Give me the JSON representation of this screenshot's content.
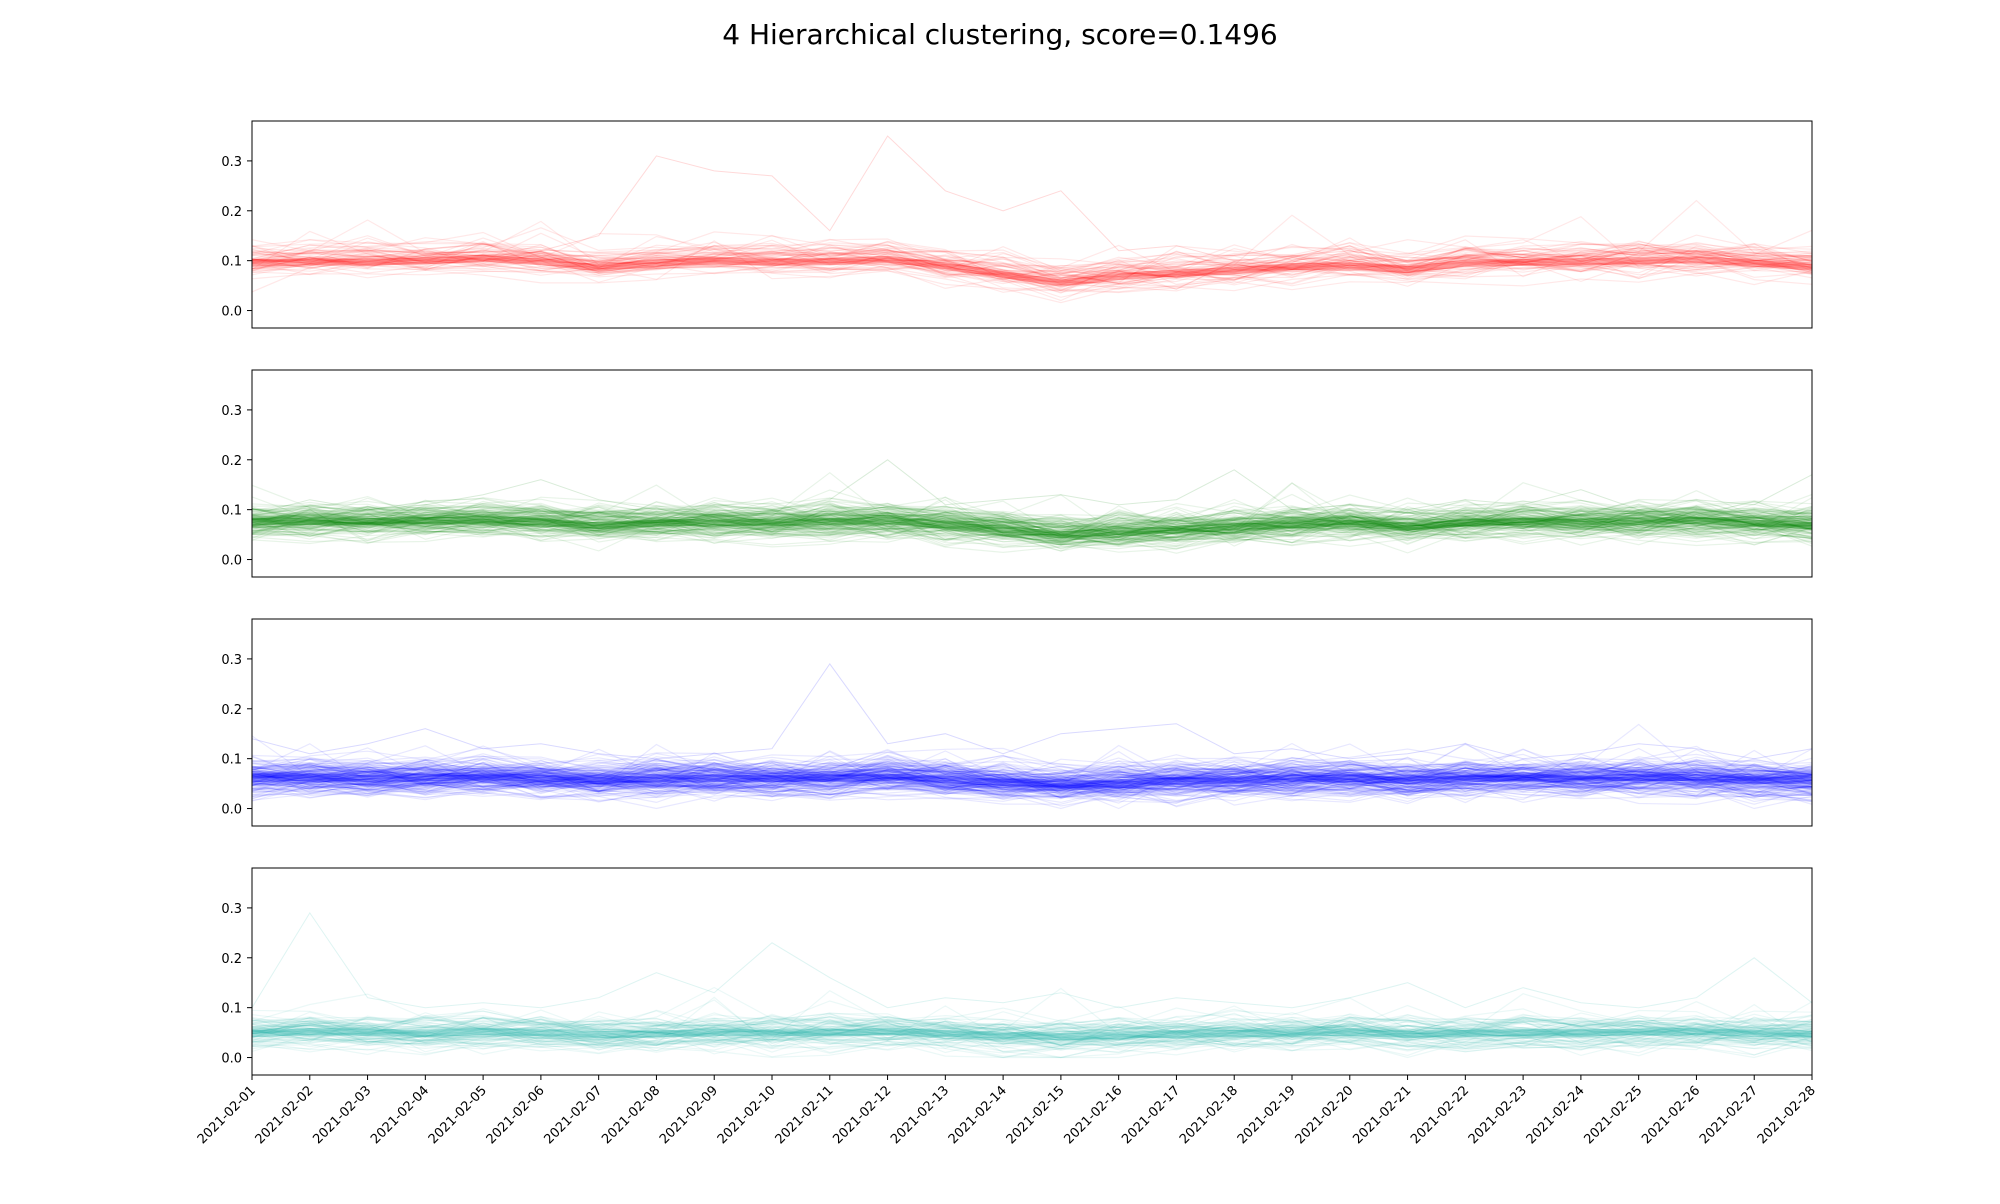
{
  "suptitle": "4 Hierarchical clustering, score=0.1496",
  "chart_data": [
    {
      "type": "line",
      "cluster_index": 0,
      "color": "#ff0000",
      "x": [
        "2021-02-01",
        "2021-02-02",
        "2021-02-03",
        "2021-02-04",
        "2021-02-05",
        "2021-02-06",
        "2021-02-07",
        "2021-02-08",
        "2021-02-09",
        "2021-02-10",
        "2021-02-11",
        "2021-02-12",
        "2021-02-13",
        "2021-02-14",
        "2021-02-15",
        "2021-02-16",
        "2021-02-17",
        "2021-02-18",
        "2021-02-19",
        "2021-02-20",
        "2021-02-21",
        "2021-02-22",
        "2021-02-23",
        "2021-02-24",
        "2021-02-25",
        "2021-02-26",
        "2021-02-27",
        "2021-02-28"
      ],
      "center": [
        0.095,
        0.098,
        0.097,
        0.1,
        0.105,
        0.098,
        0.085,
        0.095,
        0.1,
        0.097,
        0.098,
        0.103,
        0.09,
        0.072,
        0.055,
        0.068,
        0.075,
        0.08,
        0.088,
        0.09,
        0.082,
        0.095,
        0.097,
        0.098,
        0.1,
        0.102,
        0.095,
        0.087
      ],
      "peak_series": [
        0.1,
        0.11,
        0.1,
        0.11,
        0.1,
        0.12,
        0.15,
        0.31,
        0.28,
        0.27,
        0.16,
        0.35,
        0.24,
        0.2,
        0.24,
        0.12,
        0.13,
        0.1,
        0.11,
        0.12,
        0.1,
        0.11,
        0.12,
        0.1,
        0.11,
        0.12,
        0.11,
        0.1
      ],
      "ylim": [
        -0.035,
        0.38
      ],
      "yticks": [
        "0.0",
        "0.1",
        "0.2",
        "0.3"
      ],
      "n_lines": 60
    },
    {
      "type": "line",
      "cluster_index": 1,
      "color": "#008000",
      "x": [
        "2021-02-01",
        "2021-02-02",
        "2021-02-03",
        "2021-02-04",
        "2021-02-05",
        "2021-02-06",
        "2021-02-07",
        "2021-02-08",
        "2021-02-09",
        "2021-02-10",
        "2021-02-11",
        "2021-02-12",
        "2021-02-13",
        "2021-02-14",
        "2021-02-15",
        "2021-02-16",
        "2021-02-17",
        "2021-02-18",
        "2021-02-19",
        "2021-02-20",
        "2021-02-21",
        "2021-02-22",
        "2021-02-23",
        "2021-02-24",
        "2021-02-25",
        "2021-02-26",
        "2021-02-27",
        "2021-02-28"
      ],
      "center": [
        0.075,
        0.077,
        0.076,
        0.078,
        0.08,
        0.076,
        0.068,
        0.073,
        0.075,
        0.074,
        0.076,
        0.078,
        0.07,
        0.06,
        0.05,
        0.056,
        0.06,
        0.065,
        0.07,
        0.072,
        0.065,
        0.074,
        0.076,
        0.075,
        0.077,
        0.078,
        0.073,
        0.068
      ],
      "peak_series": [
        0.09,
        0.12,
        0.1,
        0.11,
        0.13,
        0.16,
        0.12,
        0.1,
        0.11,
        0.1,
        0.12,
        0.2,
        0.11,
        0.12,
        0.13,
        0.11,
        0.12,
        0.18,
        0.1,
        0.11,
        0.1,
        0.12,
        0.11,
        0.14,
        0.1,
        0.12,
        0.11,
        0.17
      ],
      "ylim": [
        -0.035,
        0.38
      ],
      "yticks": [
        "0.0",
        "0.1",
        "0.2",
        "0.3"
      ],
      "n_lines": 140
    },
    {
      "type": "line",
      "cluster_index": 2,
      "color": "#0000ff",
      "x": [
        "2021-02-01",
        "2021-02-02",
        "2021-02-03",
        "2021-02-04",
        "2021-02-05",
        "2021-02-06",
        "2021-02-07",
        "2021-02-08",
        "2021-02-09",
        "2021-02-10",
        "2021-02-11",
        "2021-02-12",
        "2021-02-13",
        "2021-02-14",
        "2021-02-15",
        "2021-02-16",
        "2021-02-17",
        "2021-02-18",
        "2021-02-19",
        "2021-02-20",
        "2021-02-21",
        "2021-02-22",
        "2021-02-23",
        "2021-02-24",
        "2021-02-25",
        "2021-02-26",
        "2021-02-27",
        "2021-02-28"
      ],
      "center": [
        0.06,
        0.062,
        0.061,
        0.062,
        0.064,
        0.061,
        0.056,
        0.06,
        0.061,
        0.06,
        0.061,
        0.063,
        0.058,
        0.052,
        0.047,
        0.052,
        0.056,
        0.058,
        0.06,
        0.06,
        0.056,
        0.06,
        0.061,
        0.061,
        0.062,
        0.062,
        0.058,
        0.055
      ],
      "peak_series": [
        0.14,
        0.11,
        0.13,
        0.16,
        0.12,
        0.13,
        0.11,
        0.1,
        0.11,
        0.12,
        0.29,
        0.13,
        0.15,
        0.11,
        0.15,
        0.16,
        0.17,
        0.11,
        0.12,
        0.1,
        0.11,
        0.13,
        0.1,
        0.11,
        0.13,
        0.12,
        0.1,
        0.12
      ],
      "ylim": [
        -0.035,
        0.38
      ],
      "yticks": [
        "0.0",
        "0.1",
        "0.2",
        "0.3"
      ],
      "n_lines": 160
    },
    {
      "type": "line",
      "cluster_index": 3,
      "color": "#20b2aa",
      "x": [
        "2021-02-01",
        "2021-02-02",
        "2021-02-03",
        "2021-02-04",
        "2021-02-05",
        "2021-02-06",
        "2021-02-07",
        "2021-02-08",
        "2021-02-09",
        "2021-02-10",
        "2021-02-11",
        "2021-02-12",
        "2021-02-13",
        "2021-02-14",
        "2021-02-15",
        "2021-02-16",
        "2021-02-17",
        "2021-02-18",
        "2021-02-19",
        "2021-02-20",
        "2021-02-21",
        "2021-02-22",
        "2021-02-23",
        "2021-02-24",
        "2021-02-25",
        "2021-02-26",
        "2021-02-27",
        "2021-02-28"
      ],
      "center": [
        0.048,
        0.052,
        0.05,
        0.049,
        0.052,
        0.05,
        0.046,
        0.048,
        0.05,
        0.049,
        0.05,
        0.052,
        0.048,
        0.045,
        0.042,
        0.045,
        0.047,
        0.048,
        0.05,
        0.05,
        0.046,
        0.049,
        0.05,
        0.05,
        0.051,
        0.052,
        0.049,
        0.047
      ],
      "peak_series": [
        0.1,
        0.29,
        0.12,
        0.1,
        0.11,
        0.1,
        0.12,
        0.17,
        0.13,
        0.23,
        0.16,
        0.1,
        0.12,
        0.11,
        0.13,
        0.1,
        0.12,
        0.11,
        0.1,
        0.12,
        0.15,
        0.1,
        0.14,
        0.11,
        0.1,
        0.12,
        0.2,
        0.11
      ],
      "ylim": [
        -0.035,
        0.38
      ],
      "yticks": [
        "0.0",
        "0.1",
        "0.2",
        "0.3"
      ],
      "n_lines": 90
    }
  ]
}
